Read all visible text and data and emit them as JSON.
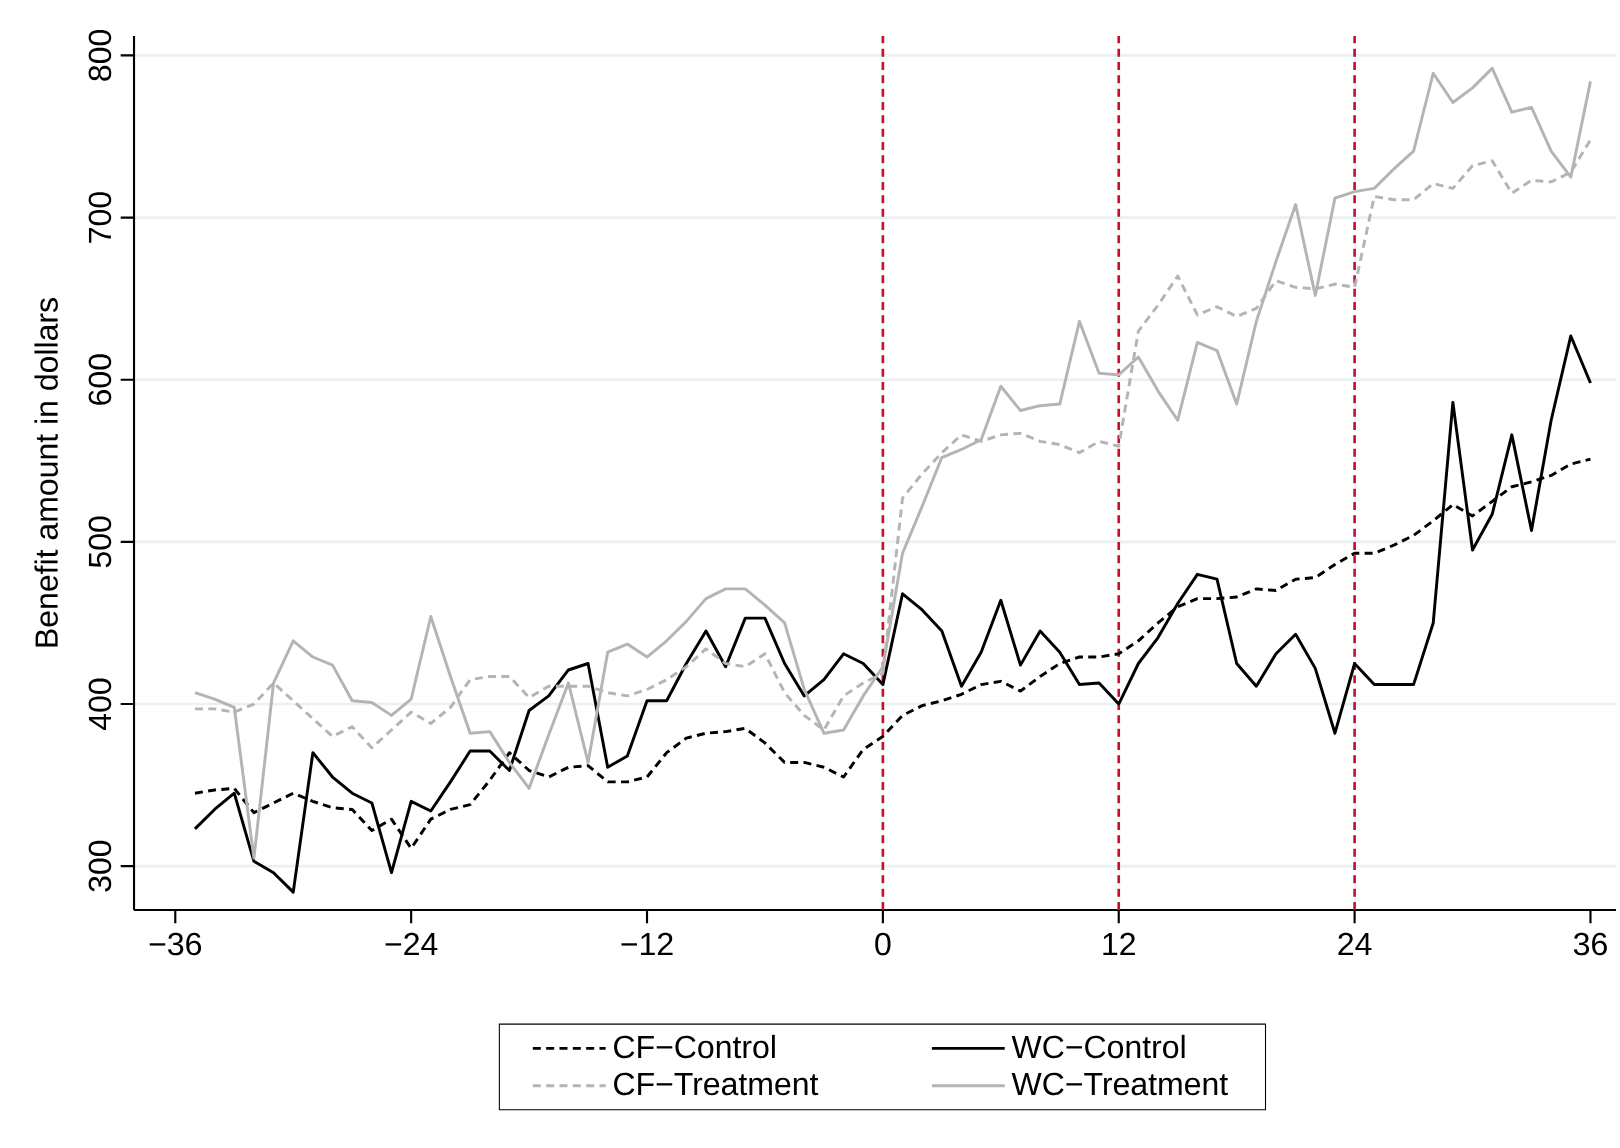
{
  "chart_data": {
    "type": "line",
    "ylabel": "Benefit amount in dollars",
    "xlim": [
      -38.1,
      37.3
    ],
    "ylim": [
      273,
      812
    ],
    "xticks": [
      {
        "value": -36,
        "label": "−36"
      },
      {
        "value": -24,
        "label": "−24"
      },
      {
        "value": -12,
        "label": "−12"
      },
      0,
      12,
      24,
      36
    ],
    "yticks": [
      300,
      400,
      500,
      600,
      700,
      800
    ],
    "grid": "y",
    "legend": "bottom",
    "marker": "none",
    "ref_lines": [
      {
        "axis": "x",
        "value": 0,
        "color": "#c8102e",
        "line_style": "dashed"
      },
      {
        "axis": "x",
        "value": 12,
        "color": "#c8102e",
        "line_style": "dashed"
      },
      {
        "axis": "x",
        "value": 24,
        "color": "#c8102e",
        "line_style": "dashed"
      }
    ],
    "x": [
      -35,
      -34,
      -33,
      -32,
      -31,
      -30,
      -29,
      -28,
      -27,
      -26,
      -25,
      -24,
      -23,
      -22,
      -21,
      -20,
      -19,
      -18,
      -17,
      -16,
      -15,
      -14,
      -13,
      -12,
      -11,
      -10,
      -9,
      -8,
      -7,
      -6,
      -5,
      -4,
      -3,
      -2,
      -1,
      0,
      1,
      2,
      3,
      4,
      5,
      6,
      7,
      8,
      9,
      10,
      11,
      12,
      13,
      14,
      15,
      16,
      17,
      18,
      19,
      20,
      21,
      22,
      23,
      24,
      25,
      26,
      27,
      28,
      29,
      30,
      31,
      32,
      33,
      34,
      35,
      36
    ],
    "series": [
      {
        "name": "CF−Control",
        "color": "#000000",
        "line_style": "dashed",
        "values": [
          345,
          347,
          348,
          333,
          339,
          345,
          340,
          336,
          335,
          322,
          329,
          311,
          329,
          335,
          338,
          353,
          370,
          359,
          355,
          361,
          362,
          352,
          352,
          355,
          370,
          379,
          382,
          383,
          385,
          376,
          364,
          364,
          361,
          355,
          372,
          380,
          393,
          399,
          402,
          406,
          412,
          414,
          408,
          417,
          425,
          429,
          429,
          431,
          439,
          450,
          460,
          465,
          465,
          466,
          471,
          470,
          477,
          478,
          486,
          493,
          493,
          498,
          504,
          513,
          523,
          516,
          525,
          534,
          537,
          541,
          548,
          551
        ]
      },
      {
        "name": "WC−Control",
        "color": "#000000",
        "line_style": "solid",
        "values": [
          323,
          335,
          345,
          303,
          296,
          284,
          370,
          355,
          345,
          339,
          296,
          340,
          334,
          352,
          371,
          371,
          359,
          396,
          405,
          421,
          425,
          361,
          368,
          402,
          402,
          425,
          445,
          423,
          453,
          453,
          425,
          405,
          415,
          431,
          425,
          412,
          468,
          458,
          445,
          411,
          432,
          464,
          424,
          445,
          432,
          412,
          413,
          400,
          425,
          441,
          462,
          480,
          477,
          425,
          411,
          431,
          443,
          422,
          382,
          425,
          412,
          412,
          412,
          450,
          586,
          495,
          517,
          566,
          507,
          575,
          627,
          598
        ]
      },
      {
        "name": "CF−Treatment",
        "color": "#b4b4b4",
        "line_style": "dashed",
        "values": [
          397,
          397,
          395,
          400,
          413,
          402,
          391,
          380,
          386,
          373,
          384,
          395,
          388,
          398,
          415,
          417,
          417,
          404,
          411,
          411,
          411,
          407,
          405,
          409,
          415,
          423,
          434,
          425,
          423,
          431,
          407,
          393,
          384,
          405,
          413,
          419,
          527,
          542,
          555,
          566,
          562,
          566,
          567,
          562,
          560,
          555,
          562,
          559,
          630,
          646,
          664,
          640,
          645,
          639,
          644,
          661,
          657,
          656,
          659,
          657,
          713,
          711,
          711,
          721,
          718,
          732,
          735,
          715,
          723,
          722,
          728,
          748
        ]
      },
      {
        "name": "WC−Treatment",
        "color": "#b4b4b4",
        "line_style": "solid",
        "values": [
          407,
          403,
          398,
          305,
          413,
          439,
          429,
          424,
          402,
          401,
          393,
          403,
          454,
          417,
          382,
          383,
          364,
          348,
          381,
          413,
          364,
          432,
          437,
          429,
          439,
          451,
          465,
          471,
          471,
          461,
          450,
          409,
          382,
          384,
          405,
          423,
          493,
          522,
          552,
          557,
          563,
          596,
          581,
          584,
          585,
          636,
          604,
          603,
          614,
          593,
          575,
          623,
          618,
          585,
          636,
          673,
          708,
          652,
          712,
          716,
          718,
          730,
          741,
          789,
          771,
          780,
          792,
          765,
          768,
          741,
          725,
          784
        ]
      }
    ]
  }
}
